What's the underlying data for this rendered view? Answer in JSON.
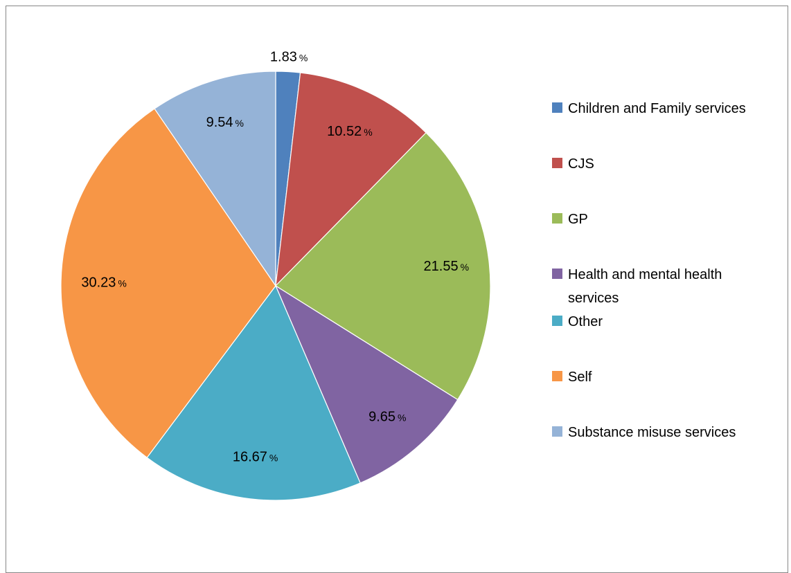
{
  "chart_data": {
    "type": "pie",
    "title": "",
    "legend_position": "right",
    "unit": "%",
    "slices": [
      {
        "label": "Children and Family services",
        "value": 1.83,
        "display": "1.83",
        "color": "#4F81BD",
        "legend_lines": [
          "Children and Family services"
        ]
      },
      {
        "label": "CJS",
        "value": 10.52,
        "display": "10.52",
        "color": "#C0504D",
        "legend_lines": [
          "CJS"
        ]
      },
      {
        "label": "GP",
        "value": 21.55,
        "display": "21.55",
        "color": "#9BBB59",
        "legend_lines": [
          "GP"
        ]
      },
      {
        "label": "Health and mental health services",
        "value": 9.65,
        "display": "9.65",
        "color": "#8064A2",
        "legend_lines": [
          "Health and mental health",
          "services"
        ]
      },
      {
        "label": "Other",
        "value": 16.67,
        "display": "16.67",
        "color": "#4BACC6",
        "legend_lines": [
          "Other"
        ]
      },
      {
        "label": "Self",
        "value": 30.23,
        "display": "30.23",
        "color": "#F79646",
        "legend_lines": [
          "Self"
        ]
      },
      {
        "label": "Substance misuse services",
        "value": 9.54,
        "display": "9.54",
        "color": "#95B3D7",
        "legend_lines": [
          "Substance misuse services"
        ]
      }
    ]
  }
}
